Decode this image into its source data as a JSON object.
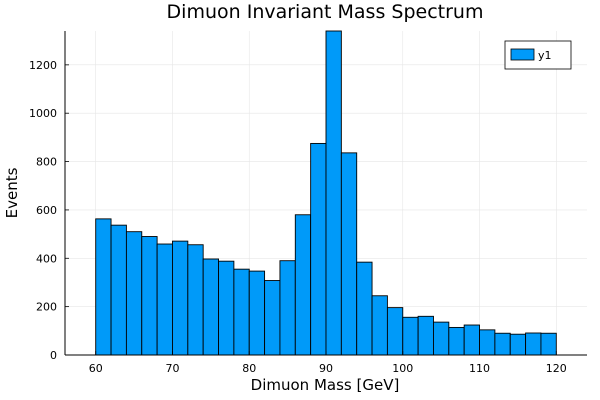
{
  "chart_data": {
    "type": "bar",
    "title": "Dimuon Invariant Mass Spectrum",
    "xlabel": "Dimuon Mass [GeV]",
    "ylabel": "Events",
    "xlim": [
      56,
      124
    ],
    "ylim": [
      0,
      1340
    ],
    "x_ticks": [
      60,
      70,
      80,
      90,
      100,
      110,
      120
    ],
    "y_ticks": [
      0,
      200,
      400,
      600,
      800,
      1000,
      1200
    ],
    "grid": true,
    "legend_position": "top-right",
    "bar_color": "#009af9",
    "bin_edges": [
      60,
      62,
      64,
      66,
      68,
      70,
      72,
      74,
      76,
      78,
      80,
      82,
      84,
      86,
      88,
      90,
      92,
      94,
      96,
      98,
      100,
      102,
      104,
      106,
      108,
      110,
      112,
      114,
      116,
      118,
      120
    ],
    "series": [
      {
        "name": "y1",
        "values": [
          563,
          537,
          510,
          490,
          459,
          471,
          456,
          397,
          388,
          355,
          347,
          308,
          390,
          580,
          875,
          1340,
          836,
          384,
          245,
          196,
          156,
          160,
          136,
          114,
          124,
          104,
          90,
          86,
          91,
          90
        ]
      }
    ]
  }
}
